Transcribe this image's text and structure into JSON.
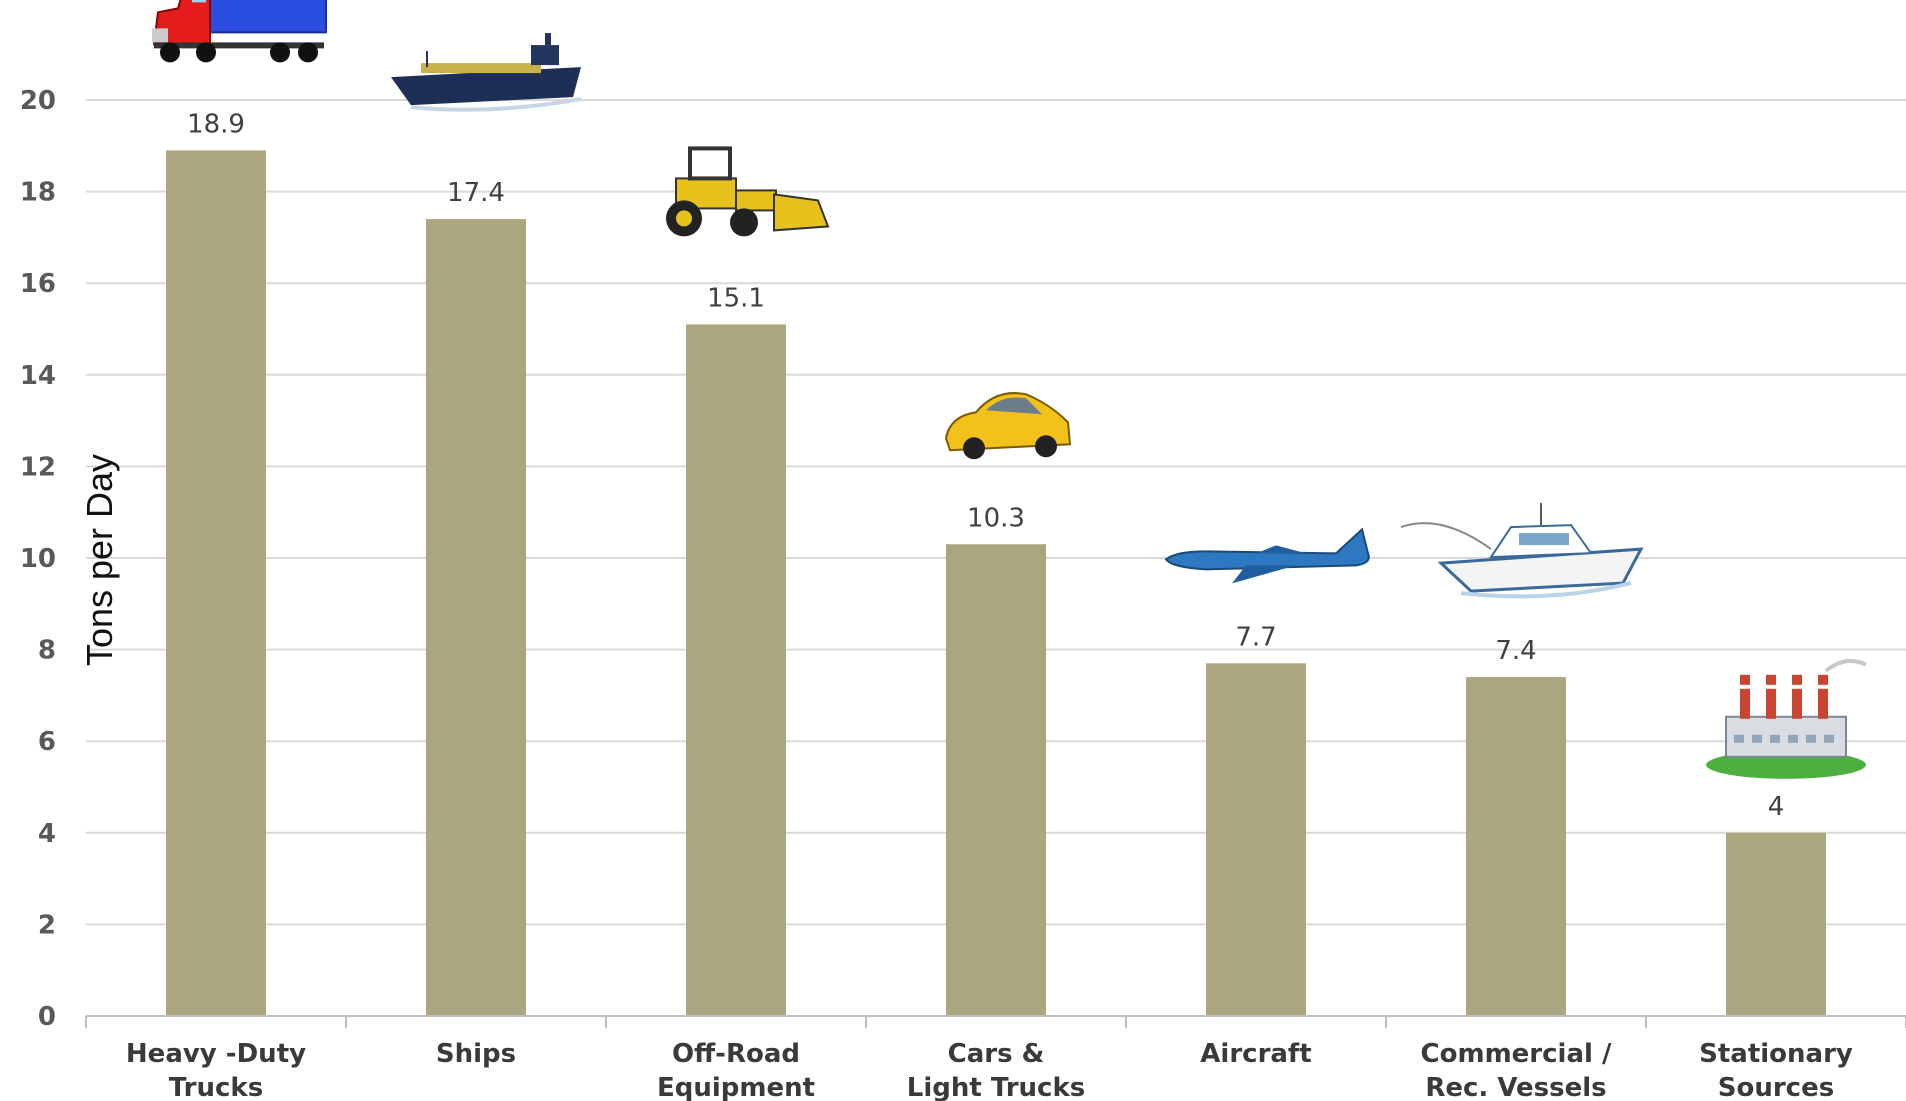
{
  "chart_data": {
    "type": "bar",
    "title": "",
    "xlabel": "",
    "ylabel": "Tons per Day",
    "ylim": [
      0,
      20
    ],
    "yticks": [
      0,
      2,
      4,
      6,
      8,
      10,
      12,
      14,
      16,
      18,
      20
    ],
    "grid": true,
    "legend": "none",
    "bar_color": "#aba67e",
    "categories": [
      [
        "Heavy -Duty",
        "Trucks"
      ],
      [
        "Ships"
      ],
      [
        "Off-Road",
        "Equipment"
      ],
      [
        "Cars &",
        "Light Trucks"
      ],
      [
        "Aircraft"
      ],
      [
        "Commercial /",
        "Rec. Vessels"
      ],
      [
        "Stationary",
        "Sources"
      ]
    ],
    "values": [
      18.9,
      17.4,
      15.1,
      10.3,
      7.7,
      7.4,
      4
    ],
    "data_labels": [
      "18.9",
      "17.4",
      "15.1",
      "10.3",
      "7.7",
      "7.4",
      "4"
    ],
    "icons": [
      "truck-icon",
      "ship-icon",
      "bulldozer-icon",
      "car-icon",
      "airplane-icon",
      "boat-icon",
      "factory-icon"
    ]
  }
}
